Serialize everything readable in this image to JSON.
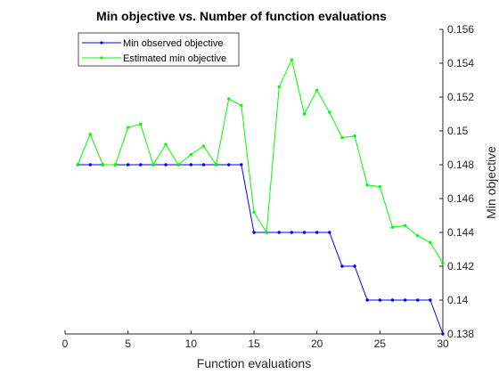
{
  "chart_data": {
    "type": "line",
    "title": "Min objective vs. Number of function evaluations",
    "xlabel": "Function evaluations",
    "ylabel": "Min objective",
    "xlim": [
      0,
      30
    ],
    "ylim": [
      0.138,
      0.156
    ],
    "xticks": [
      0,
      5,
      10,
      15,
      20,
      25,
      30
    ],
    "yticks": [
      0.138,
      0.14,
      0.142,
      0.144,
      0.146,
      0.148,
      0.15,
      0.152,
      0.154,
      0.156
    ],
    "ytick_labels": [
      "0.138",
      "0.14",
      "0.142",
      "0.144",
      "0.146",
      "0.148",
      "0.15",
      "0.152",
      "0.154",
      "0.156"
    ],
    "y_axis_side": "right",
    "grid": false,
    "legend_position": "top-left",
    "x": [
      1,
      2,
      3,
      4,
      5,
      6,
      7,
      8,
      9,
      10,
      11,
      12,
      13,
      14,
      15,
      16,
      17,
      18,
      19,
      20,
      21,
      22,
      23,
      24,
      25,
      26,
      27,
      28,
      29,
      30
    ],
    "series": [
      {
        "name": "Min observed objective",
        "color": "#0000ff",
        "values": [
          0.148,
          0.148,
          0.148,
          0.148,
          0.148,
          0.148,
          0.148,
          0.148,
          0.148,
          0.148,
          0.148,
          0.148,
          0.148,
          0.148,
          0.144,
          0.144,
          0.144,
          0.144,
          0.144,
          0.144,
          0.144,
          0.142,
          0.142,
          0.14,
          0.14,
          0.14,
          0.14,
          0.14,
          0.14,
          0.138
        ]
      },
      {
        "name": "Estimated min objective",
        "color": "#00ff00",
        "values": [
          0.148,
          0.1498,
          0.148,
          0.148,
          0.1502,
          0.1504,
          0.148,
          0.1492,
          0.148,
          0.1486,
          0.1491,
          0.148,
          0.1519,
          0.1515,
          0.1452,
          0.144,
          0.1526,
          0.1542,
          0.151,
          0.1524,
          0.1511,
          0.1496,
          0.1497,
          0.1468,
          0.1467,
          0.1443,
          0.1444,
          0.1438,
          0.1434,
          0.1422
        ]
      }
    ]
  }
}
